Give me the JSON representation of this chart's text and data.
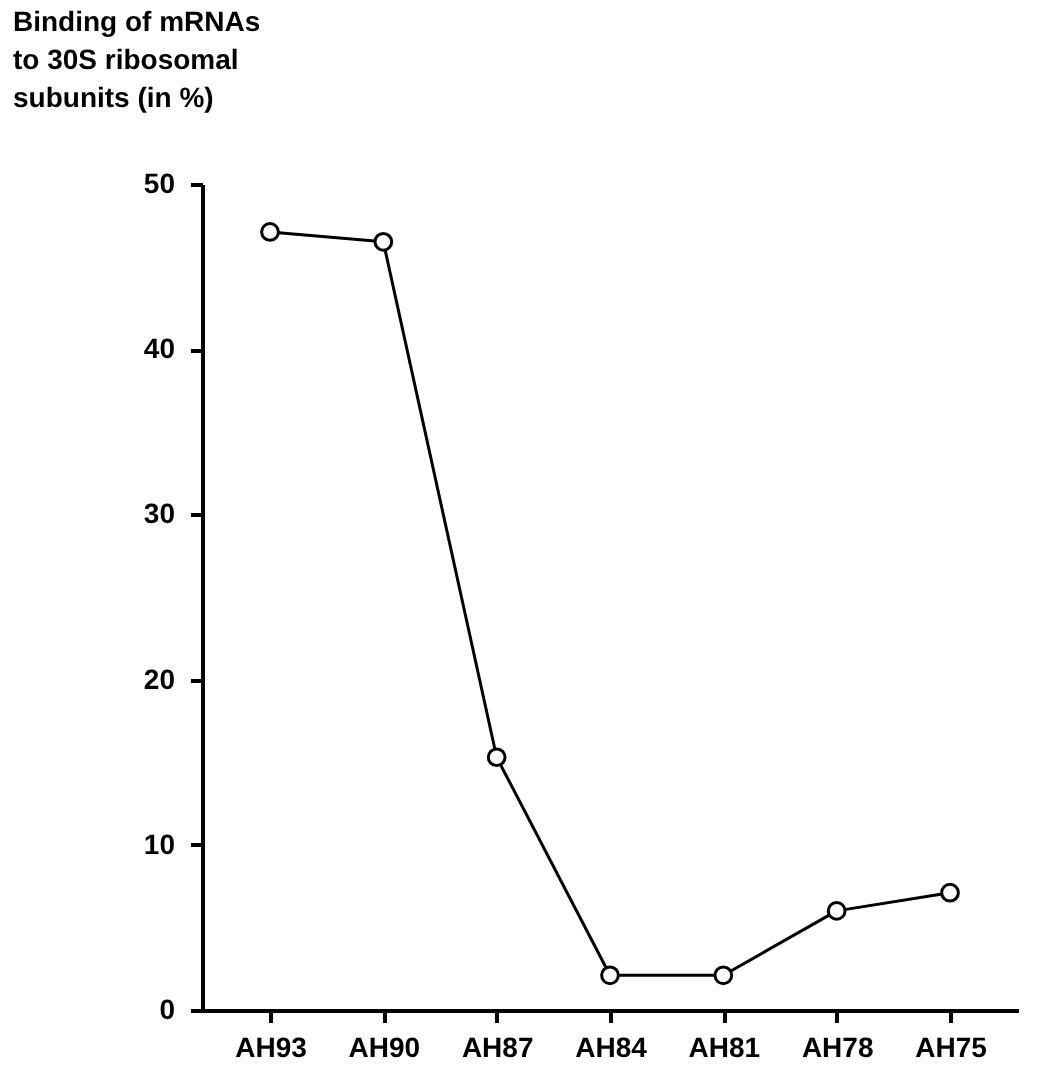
{
  "chart_data": {
    "type": "line",
    "ylabel": "Binding of mRNAs to 30S ribosomal subunits (in %)",
    "categories": [
      "AH93",
      "AH90",
      "AH87",
      "AH84",
      "AH81",
      "AH78",
      "AH75"
    ],
    "series": [
      {
        "color": "#000000",
        "values": [
          47.1,
          46.5,
          15.3,
          2.1,
          2.1,
          6.0,
          7.1
        ]
      }
    ],
    "ylim": [
      0,
      50
    ],
    "yticks": [
      0,
      10,
      20,
      30,
      40,
      50
    ],
    "marker": "circle",
    "line_style": "solid",
    "grid": false,
    "legend": false
  }
}
